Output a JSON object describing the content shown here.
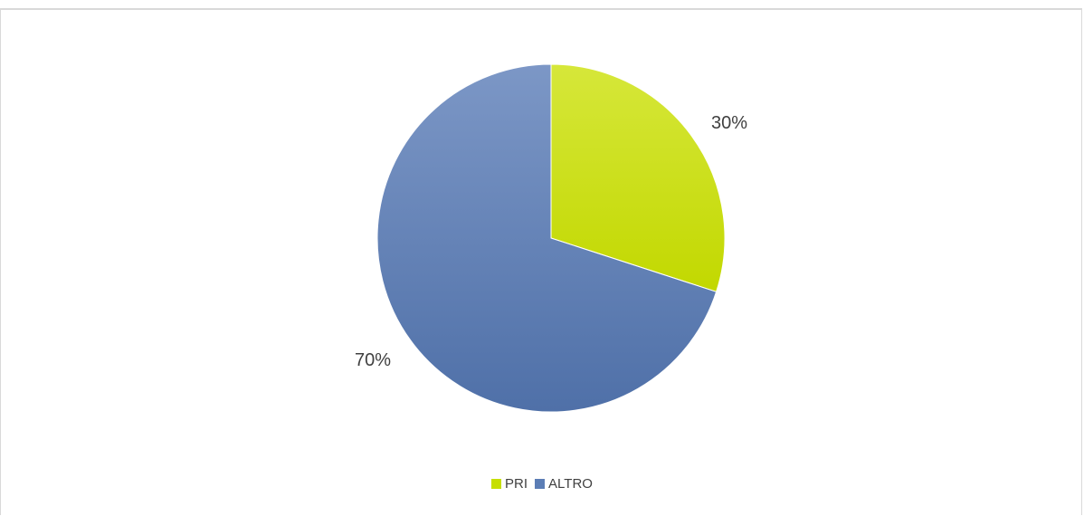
{
  "chart_data": {
    "type": "pie",
    "title": "",
    "slices": [
      {
        "name": "PRI",
        "value": 30,
        "label": "30%",
        "color": "#c6df00"
      },
      {
        "name": "ALTRO",
        "value": 70,
        "label": "70%",
        "color": "#5b7db5"
      }
    ],
    "start_angle_deg": 0,
    "direction": "clockwise",
    "legend_placement": "bottom"
  }
}
